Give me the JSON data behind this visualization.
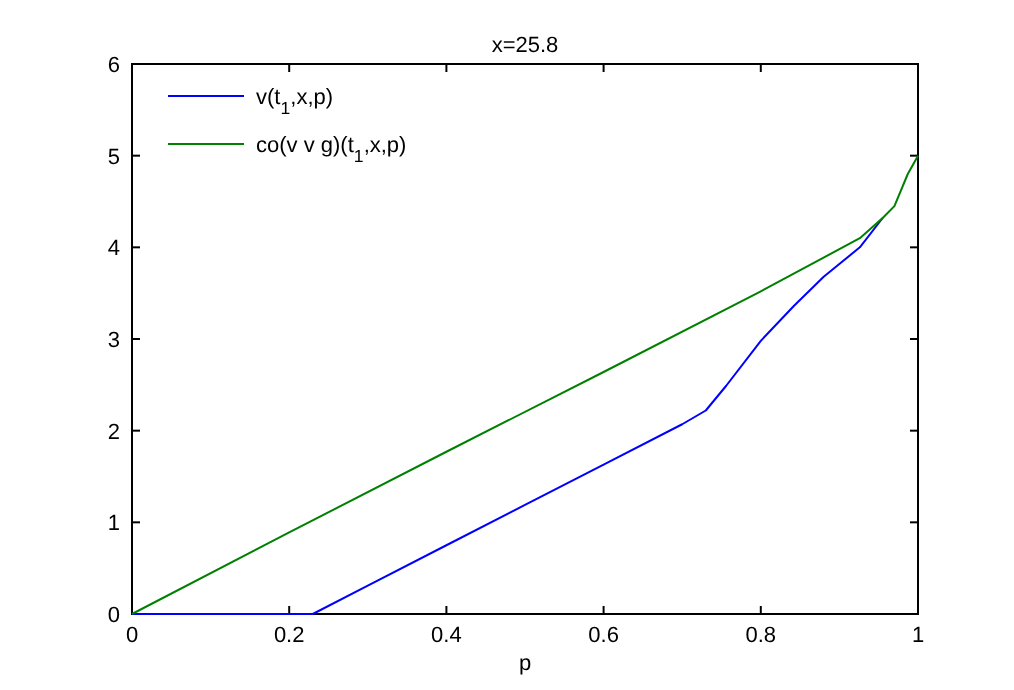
{
  "chart_data": {
    "type": "line",
    "title": "x=25.8",
    "xlabel": "p",
    "legend": "top left",
    "grid": false,
    "xlim": [
      0,
      1
    ],
    "ylim": [
      0,
      6
    ],
    "xticks": [
      0,
      0.2,
      0.4,
      0.6,
      0.8,
      1
    ],
    "yticks": [
      0,
      1,
      2,
      3,
      4,
      5,
      6
    ],
    "series": [
      {
        "name": "v(t$_{1}$,x,p)",
        "color": "#0000ff",
        "x": [
          0,
          0.1,
          0.2,
          0.23,
          0.3,
          0.4,
          0.5,
          0.6,
          0.7,
          0.73,
          0.756,
          0.8,
          0.842,
          0.88,
          0.926,
          0.955
        ],
        "values": [
          0,
          0,
          0,
          0,
          0.31,
          0.75,
          1.19,
          1.63,
          2.07,
          2.22,
          2.49,
          2.98,
          3.36,
          3.68,
          4.0,
          4.32
        ]
      },
      {
        "name": "co(v v g)(t$_{1}$,x,p)",
        "color": "#008000",
        "x": [
          0,
          0.2,
          0.4,
          0.6,
          0.8,
          0.926,
          0.955,
          0.97,
          0.987,
          1
        ],
        "values": [
          0,
          0.89,
          1.77,
          2.64,
          3.52,
          4.1,
          4.32,
          4.45,
          4.8,
          5
        ]
      }
    ]
  }
}
